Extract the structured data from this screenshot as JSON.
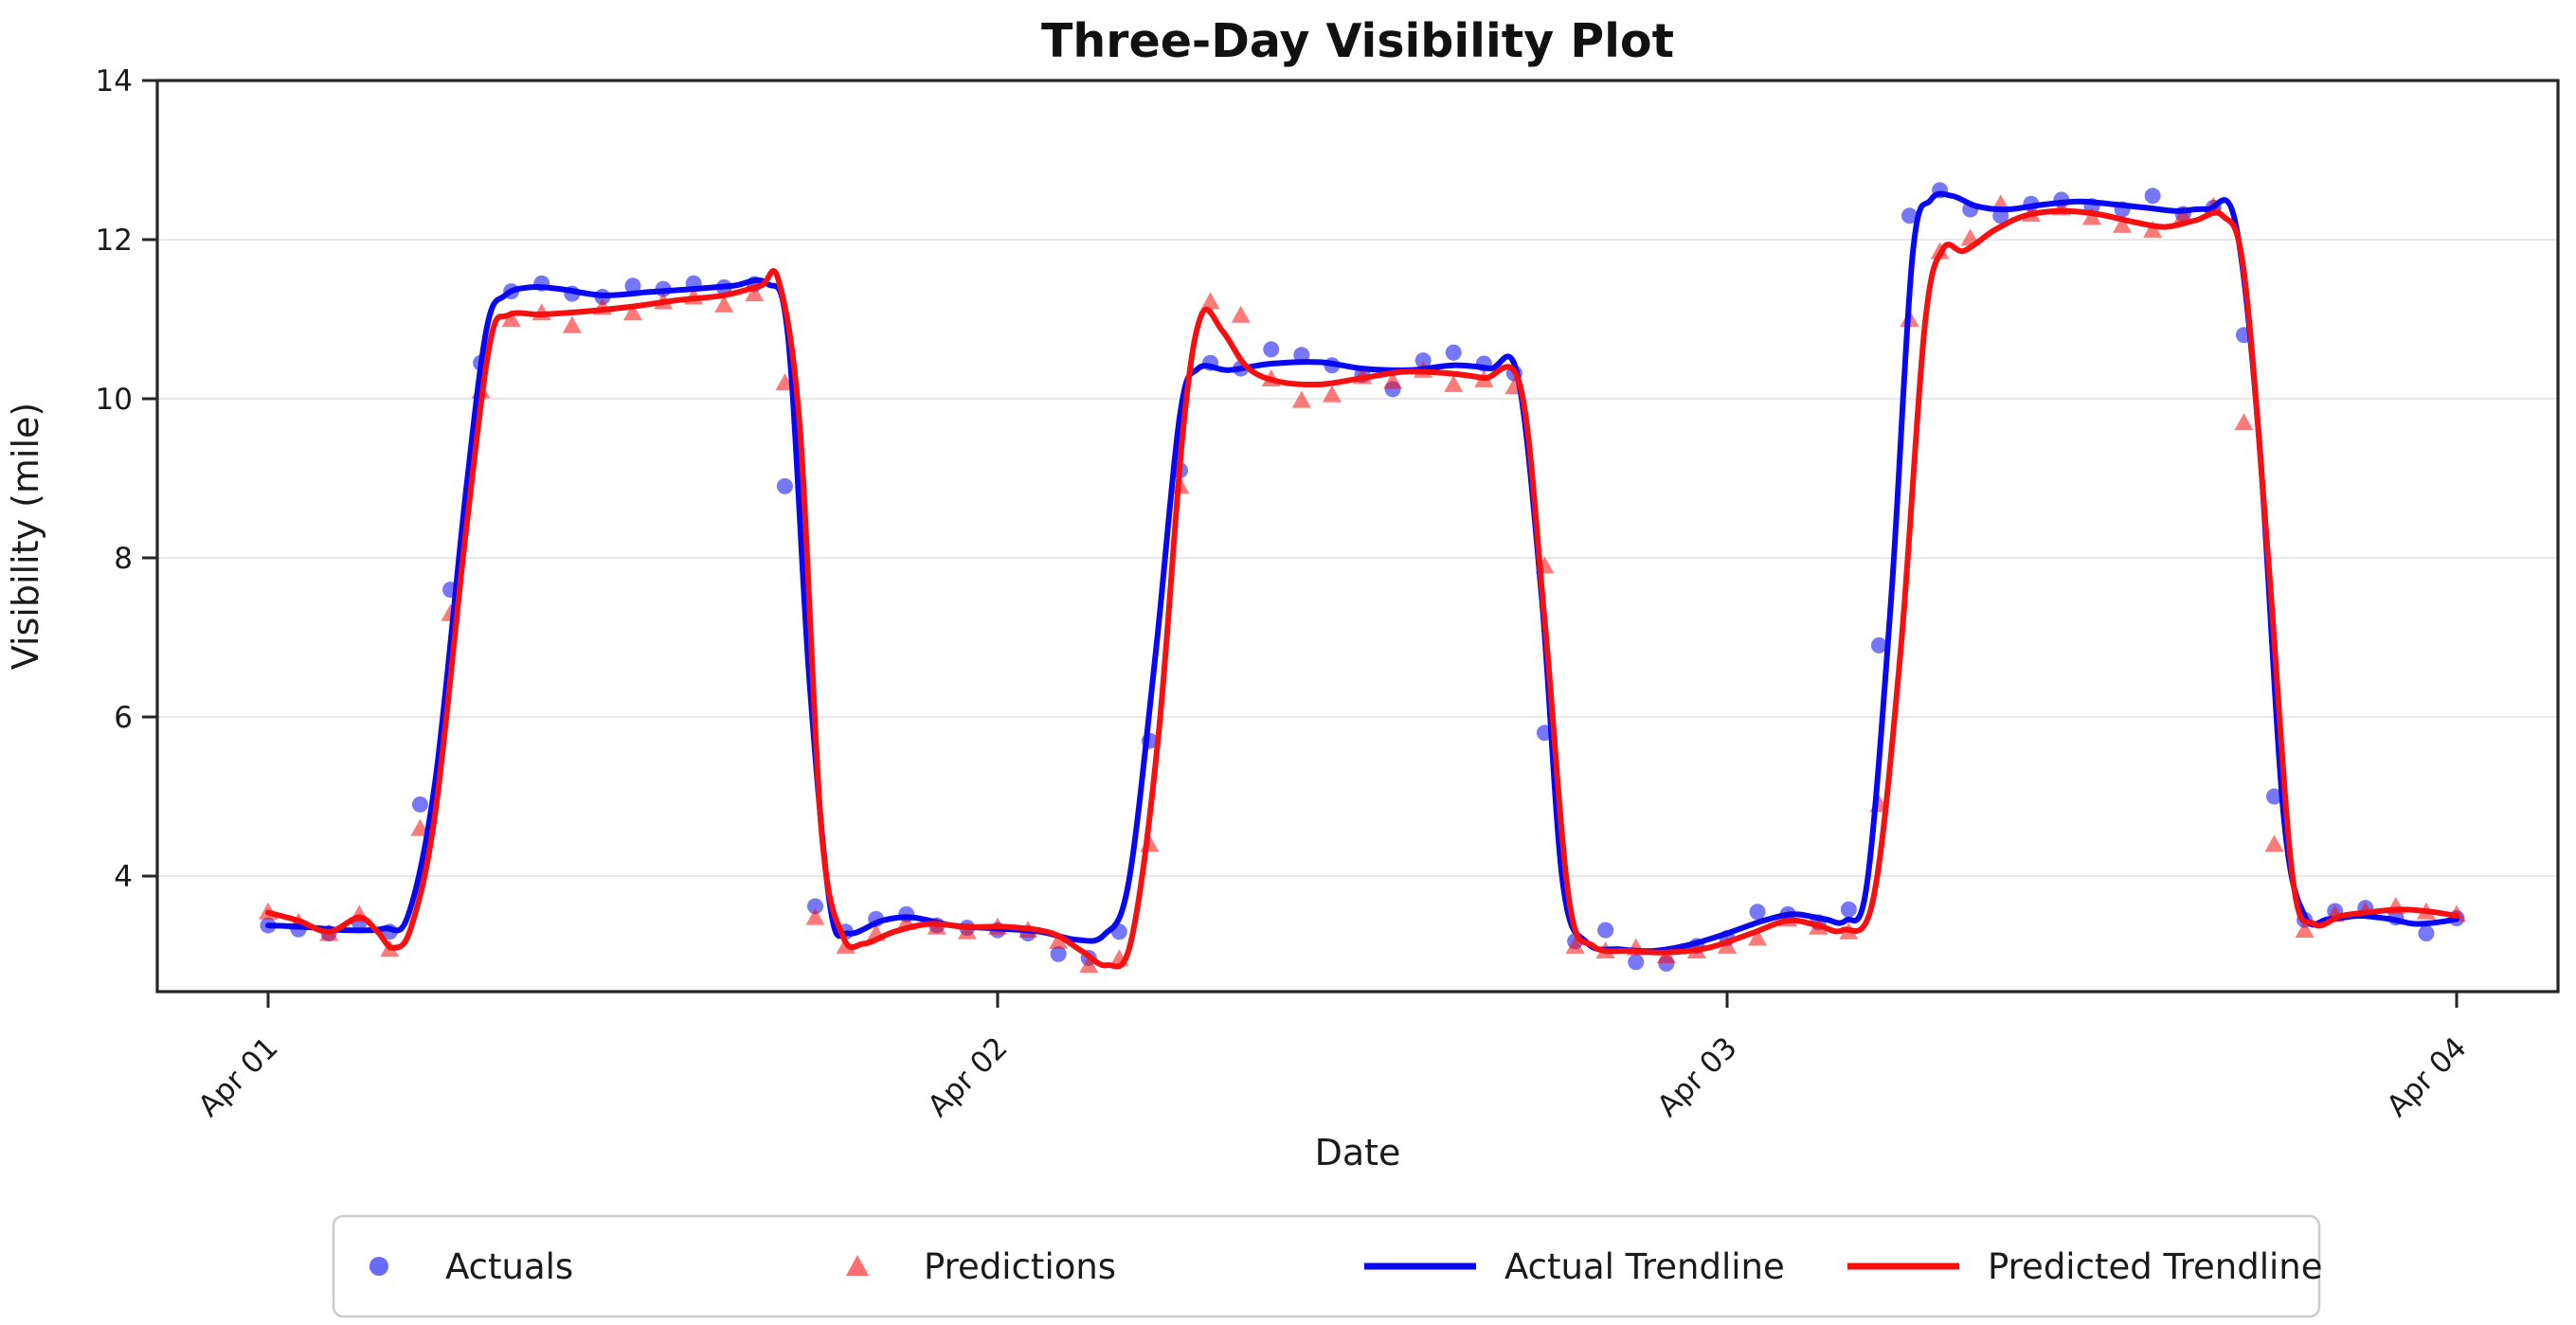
{
  "chart_data": {
    "type": "scatter",
    "title": "Three-Day Visibility Plot",
    "xlabel": "Date",
    "ylabel": "Visibility (mile)",
    "x_tick_labels": [
      "Apr 01",
      "Apr 02",
      "Apr 03",
      "Apr 04"
    ],
    "x_tick_hours": [
      0,
      24,
      48,
      72
    ],
    "y_ticks": [
      4,
      6,
      8,
      10,
      12,
      14
    ],
    "ylim": [
      2.55,
      14
    ],
    "xlim_hours": [
      -3.4,
      75.4
    ],
    "grid": "horizontal-only",
    "grid_color": "#e8e8e8",
    "legend_position": "bottom-center",
    "x_hours": [
      0,
      1,
      2,
      3,
      4,
      5,
      6,
      7,
      8,
      9,
      10,
      11,
      12,
      13,
      14,
      15,
      16,
      17,
      18,
      19,
      20,
      21,
      22,
      23,
      24,
      25,
      26,
      27,
      28,
      29,
      30,
      31,
      32,
      33,
      34,
      35,
      36,
      37,
      38,
      39,
      40,
      41,
      42,
      43,
      44,
      45,
      46,
      47,
      48,
      49,
      50,
      51,
      52,
      53,
      54,
      55,
      56,
      57,
      58,
      59,
      60,
      61,
      62,
      63,
      64,
      65,
      66,
      67,
      68,
      69,
      70,
      71,
      72
    ],
    "series": [
      {
        "name": "Actuals",
        "kind": "scatter",
        "marker": "circle",
        "color": "#0808f5",
        "opacity": 0.55,
        "values": [
          3.38,
          3.33,
          3.28,
          3.42,
          3.3,
          4.9,
          7.6,
          10.45,
          11.35,
          11.45,
          11.32,
          11.28,
          11.42,
          11.38,
          11.45,
          11.4,
          11.44,
          8.9,
          3.62,
          3.3,
          3.46,
          3.52,
          3.38,
          3.35,
          3.32,
          3.28,
          3.02,
          2.97,
          3.3,
          5.7,
          9.1,
          10.45,
          10.38,
          10.62,
          10.55,
          10.42,
          10.3,
          10.12,
          10.48,
          10.58,
          10.44,
          10.32,
          5.8,
          3.18,
          3.32,
          2.92,
          2.9,
          3.12,
          3.22,
          3.55,
          3.52,
          3.42,
          3.58,
          6.9,
          12.3,
          12.62,
          12.38,
          12.3,
          12.45,
          12.5,
          12.42,
          12.38,
          12.55,
          12.32,
          12.4,
          10.8,
          5.0,
          3.45,
          3.56,
          3.6,
          3.48,
          3.28,
          3.47
        ]
      },
      {
        "name": "Predictions",
        "kind": "scatter",
        "marker": "triangle",
        "color": "#f80f0f",
        "opacity": 0.55,
        "values": [
          3.55,
          3.42,
          3.28,
          3.52,
          3.08,
          4.6,
          7.3,
          10.1,
          11.0,
          11.08,
          10.92,
          11.15,
          11.08,
          11.22,
          11.28,
          11.18,
          11.32,
          10.2,
          3.48,
          3.12,
          3.28,
          3.42,
          3.36,
          3.3,
          3.36,
          3.32,
          3.18,
          2.88,
          2.96,
          4.4,
          8.9,
          11.22,
          11.05,
          10.25,
          9.98,
          10.05,
          10.28,
          10.22,
          10.36,
          10.18,
          10.24,
          10.15,
          7.9,
          3.12,
          3.06,
          3.1,
          3.0,
          3.06,
          3.12,
          3.22,
          3.46,
          3.36,
          3.3,
          4.9,
          11.0,
          11.85,
          12.02,
          12.45,
          12.32,
          12.4,
          12.28,
          12.18,
          12.12,
          12.3,
          12.42,
          9.7,
          4.4,
          3.32,
          3.52,
          3.56,
          3.62,
          3.55,
          3.52
        ]
      },
      {
        "name": "Actual Trendline",
        "kind": "line",
        "color": "#0808f5",
        "width": 6,
        "trend_points": [
          [
            0,
            3.38
          ],
          [
            1.2,
            3.36
          ],
          [
            2.5,
            3.32
          ],
          [
            3.8,
            3.34
          ],
          [
            4.6,
            3.5
          ],
          [
            5.5,
            5.2
          ],
          [
            6.5,
            8.8
          ],
          [
            7.2,
            10.9
          ],
          [
            7.8,
            11.3
          ],
          [
            8.6,
            11.4
          ],
          [
            9.6,
            11.38
          ],
          [
            11,
            11.3
          ],
          [
            12.5,
            11.34
          ],
          [
            14,
            11.38
          ],
          [
            15.3,
            11.42
          ],
          [
            16.4,
            11.45
          ],
          [
            17.1,
            10.8
          ],
          [
            17.8,
            6.5
          ],
          [
            18.5,
            3.6
          ],
          [
            19.1,
            3.28
          ],
          [
            20.2,
            3.44
          ],
          [
            21.2,
            3.48
          ],
          [
            22.5,
            3.38
          ],
          [
            24,
            3.34
          ],
          [
            25.4,
            3.3
          ],
          [
            26.6,
            3.2
          ],
          [
            27.5,
            3.26
          ],
          [
            28.3,
            3.9
          ],
          [
            29.2,
            6.8
          ],
          [
            30,
            9.8
          ],
          [
            30.6,
            10.38
          ],
          [
            31.6,
            10.36
          ],
          [
            33,
            10.44
          ],
          [
            34.6,
            10.46
          ],
          [
            36,
            10.38
          ],
          [
            37.6,
            10.36
          ],
          [
            39,
            10.42
          ],
          [
            40.2,
            10.38
          ],
          [
            41.1,
            10.3
          ],
          [
            41.9,
            7.5
          ],
          [
            42.6,
            3.9
          ],
          [
            43.4,
            3.16
          ],
          [
            44.5,
            3.08
          ],
          [
            45.6,
            3.06
          ],
          [
            46.8,
            3.14
          ],
          [
            48,
            3.28
          ],
          [
            49.2,
            3.44
          ],
          [
            50.2,
            3.52
          ],
          [
            51.2,
            3.46
          ],
          [
            51.9,
            3.44
          ],
          [
            52.6,
            3.9
          ],
          [
            53.4,
            7.5
          ],
          [
            54.1,
            11.8
          ],
          [
            54.7,
            12.5
          ],
          [
            55.4,
            12.55
          ],
          [
            56.2,
            12.42
          ],
          [
            57.2,
            12.38
          ],
          [
            58.4,
            12.44
          ],
          [
            59.6,
            12.48
          ],
          [
            60.8,
            12.44
          ],
          [
            61.8,
            12.4
          ],
          [
            62.8,
            12.36
          ],
          [
            63.8,
            12.38
          ],
          [
            64.7,
            12.25
          ],
          [
            65.5,
            9.5
          ],
          [
            66.3,
            4.8
          ],
          [
            67,
            3.5
          ],
          [
            67.8,
            3.46
          ],
          [
            68.8,
            3.5
          ],
          [
            69.8,
            3.46
          ],
          [
            70.6,
            3.4
          ],
          [
            71.4,
            3.42
          ],
          [
            72,
            3.46
          ]
        ]
      },
      {
        "name": "Predicted Trendline",
        "kind": "line",
        "color": "#f80f0f",
        "width": 6,
        "trend_points": [
          [
            0,
            3.54
          ],
          [
            1,
            3.44
          ],
          [
            2,
            3.3
          ],
          [
            3,
            3.48
          ],
          [
            3.6,
            3.3
          ],
          [
            4.1,
            3.1
          ],
          [
            4.7,
            3.35
          ],
          [
            5.5,
            4.8
          ],
          [
            6.5,
            8.3
          ],
          [
            7.3,
            10.7
          ],
          [
            7.9,
            11.05
          ],
          [
            9,
            11.06
          ],
          [
            10.5,
            11.1
          ],
          [
            12,
            11.16
          ],
          [
            13.5,
            11.24
          ],
          [
            15,
            11.3
          ],
          [
            16.2,
            11.42
          ],
          [
            16.8,
            11.48
          ],
          [
            17.5,
            9.6
          ],
          [
            18.2,
            4.6
          ],
          [
            18.9,
            3.25
          ],
          [
            19.6,
            3.15
          ],
          [
            20.6,
            3.3
          ],
          [
            21.8,
            3.4
          ],
          [
            23,
            3.36
          ],
          [
            24.4,
            3.36
          ],
          [
            25.8,
            3.28
          ],
          [
            26.8,
            3.05
          ],
          [
            27.6,
            2.88
          ],
          [
            28.4,
            3.2
          ],
          [
            29.3,
            5.8
          ],
          [
            30.1,
            9.6
          ],
          [
            30.7,
            11.05
          ],
          [
            31.4,
            10.85
          ],
          [
            32.2,
            10.4
          ],
          [
            33.2,
            10.22
          ],
          [
            34.6,
            10.18
          ],
          [
            36,
            10.26
          ],
          [
            37.4,
            10.34
          ],
          [
            38.8,
            10.32
          ],
          [
            40,
            10.26
          ],
          [
            41.2,
            10.15
          ],
          [
            42,
            7.2
          ],
          [
            42.8,
            3.7
          ],
          [
            43.6,
            3.12
          ],
          [
            44.8,
            3.06
          ],
          [
            46,
            3.04
          ],
          [
            47.4,
            3.1
          ],
          [
            48.8,
            3.28
          ],
          [
            50,
            3.44
          ],
          [
            51,
            3.38
          ],
          [
            51.8,
            3.32
          ],
          [
            52.8,
            3.7
          ],
          [
            53.7,
            6.8
          ],
          [
            54.5,
            10.9
          ],
          [
            55.1,
            11.88
          ],
          [
            55.8,
            11.86
          ],
          [
            56.8,
            12.12
          ],
          [
            57.8,
            12.3
          ],
          [
            59,
            12.36
          ],
          [
            60.2,
            12.32
          ],
          [
            61.4,
            12.22
          ],
          [
            62.4,
            12.16
          ],
          [
            63.4,
            12.24
          ],
          [
            64.3,
            12.3
          ],
          [
            65,
            11.6
          ],
          [
            65.8,
            8.0
          ],
          [
            66.6,
            4.0
          ],
          [
            67.3,
            3.4
          ],
          [
            68.2,
            3.5
          ],
          [
            69.2,
            3.55
          ],
          [
            70.2,
            3.58
          ],
          [
            71.2,
            3.55
          ],
          [
            72,
            3.5
          ]
        ]
      }
    ],
    "legend": {
      "items": [
        {
          "label": "Actuals"
        },
        {
          "label": "Predictions"
        },
        {
          "label": "Actual Trendline"
        },
        {
          "label": "Predicted Trendline"
        }
      ]
    }
  }
}
